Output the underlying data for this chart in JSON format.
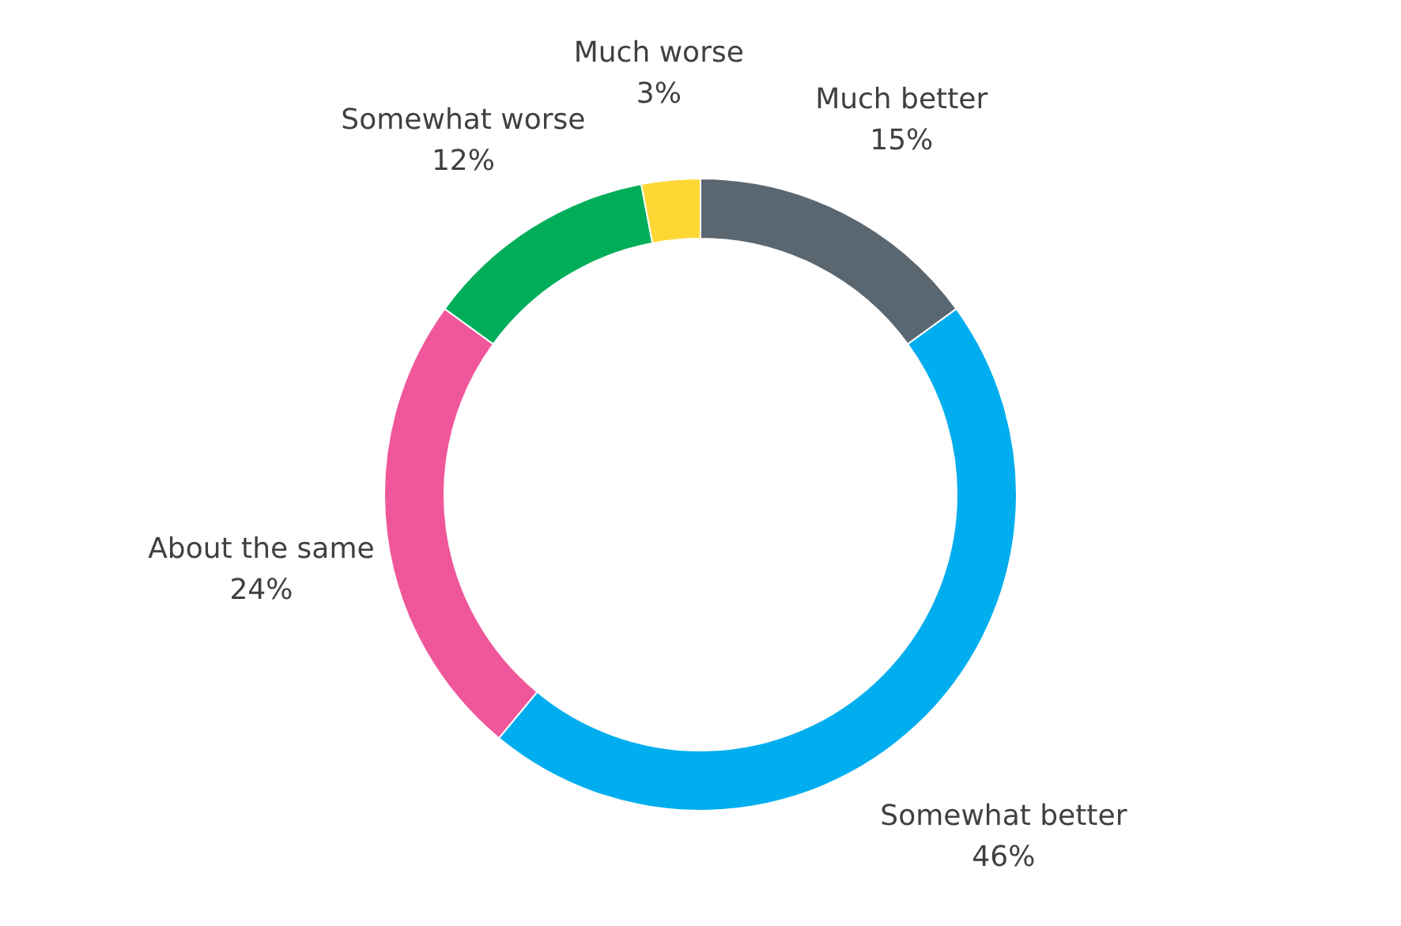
{
  "chart_data": {
    "type": "donut",
    "categories": [
      "Much better",
      "Somewhat better",
      "About the same",
      "Somewhat worse",
      "Much worse"
    ],
    "values": [
      15,
      46,
      24,
      12,
      3
    ],
    "value_labels": [
      "15%",
      "46%",
      "24%",
      "12%",
      "3%"
    ],
    "colors": [
      "#5a6670",
      "#00aeef",
      "#f0579b",
      "#00ae5a",
      "#fdd835"
    ]
  }
}
